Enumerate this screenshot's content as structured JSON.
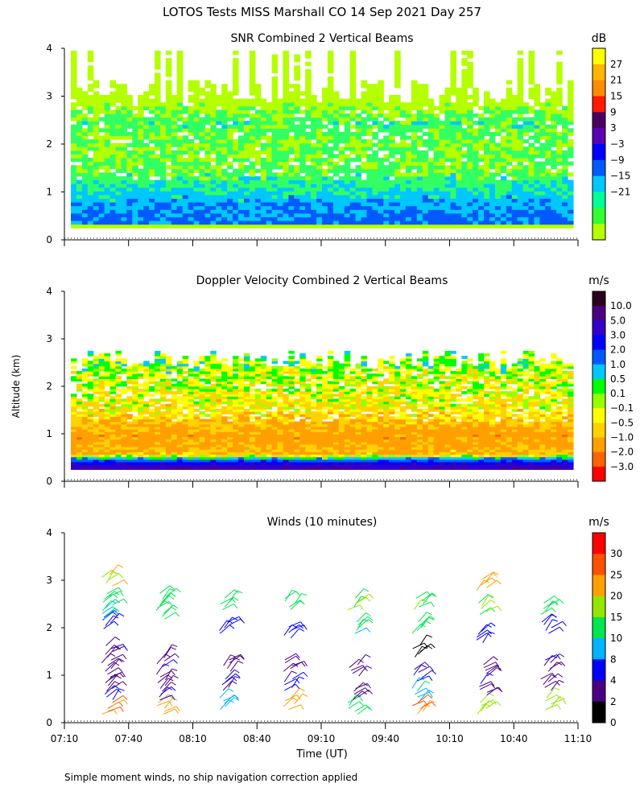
{
  "title": "LOTOS Tests MISS Marshall CO  14 Sep 2021 Day 257",
  "shared_ylabel": "Altitude (km)",
  "footnote": "Simple moment winds, no ship navigation correction applied",
  "chart_data": [
    {
      "id": "snr",
      "type": "heatmap",
      "title": "SNR Combined 2 Vertical Beams",
      "xlabel": "",
      "ylabel": "Altitude (km)",
      "ylim": [
        0,
        4
      ],
      "xlim": [
        "07:10",
        "11:10"
      ],
      "yticks": [
        "0",
        "1",
        "2",
        "3",
        "4"
      ],
      "colorbar": {
        "unit": "dB",
        "labels": [
          "27",
          "21",
          "15",
          "9",
          "3",
          "−3",
          "−9",
          "−15",
          "−21"
        ],
        "colors": [
          "#ffff00",
          "#ffb400",
          "#ff8c00",
          "#ff1a00",
          "#4b0060",
          "#5a00b4",
          "#0000ff",
          "#005aff",
          "#00c8ff",
          "#00ff96",
          "#32ff32",
          "#b4ff00"
        ]
      },
      "profile": [
        {
          "alt_km": 0.4,
          "level_db": -1
        },
        {
          "alt_km": 0.8,
          "level_db": -4
        },
        {
          "alt_km": 1.1,
          "level_db": -9
        },
        {
          "alt_km": 1.5,
          "level_db": -14
        },
        {
          "alt_km": 2.0,
          "level_db": -15
        },
        {
          "alt_km": 2.5,
          "level_db": -12
        },
        {
          "alt_km": 3.0,
          "level_db": -20
        }
      ]
    },
    {
      "id": "doppler",
      "type": "heatmap",
      "title": "Doppler Velocity Combined 2 Vertical Beams",
      "xlabel": "",
      "ylabel": "Altitude (km)",
      "ylim": [
        0,
        4
      ],
      "xlim": [
        "07:10",
        "11:10"
      ],
      "yticks": [
        "0",
        "1",
        "2",
        "3",
        "4"
      ],
      "colorbar": {
        "unit": "m/s",
        "labels": [
          "10.0",
          "5.0",
          "3.0",
          "2.0",
          "1.0",
          "0.5",
          "0.1",
          "−0.1",
          "−0.5",
          "−1.0",
          "−2.0",
          "−3.0"
        ],
        "colors": [
          "#2a001e",
          "#4b0082",
          "#3200c8",
          "#0000ff",
          "#005aff",
          "#00c8ff",
          "#00ff00",
          "#96ff00",
          "#ffff00",
          "#ffd200",
          "#ffa000",
          "#ff6400",
          "#ff0000"
        ]
      },
      "profile": [
        {
          "alt_km": 0.3,
          "level_ms": 5.0
        },
        {
          "alt_km": 0.6,
          "level_ms": -1.0
        },
        {
          "alt_km": 1.0,
          "level_ms": -1.5
        },
        {
          "alt_km": 1.5,
          "level_ms": -0.5
        },
        {
          "alt_km": 2.0,
          "level_ms": -0.3
        },
        {
          "alt_km": 2.5,
          "level_ms": 0.1
        }
      ]
    },
    {
      "id": "winds",
      "type": "scatter",
      "title": "Winds (10 minutes)",
      "xlabel": "Time (UT)",
      "ylabel": "Altitude (km)",
      "ylim": [
        0,
        4
      ],
      "xlim": [
        "07:10",
        "11:10"
      ],
      "xticks": [
        "07:10",
        "07:40",
        "08:10",
        "08:40",
        "09:10",
        "09:40",
        "10:10",
        "10:40",
        "11:10"
      ],
      "yticks": [
        "0",
        "1",
        "2",
        "3",
        "4"
      ],
      "colorbar": {
        "unit": "m/s",
        "labels": [
          "30",
          "25",
          "20",
          "15",
          "10",
          "8",
          "4",
          "2",
          "0"
        ],
        "colors": [
          "#ff0000",
          "#ff5000",
          "#ffa000",
          "#96e600",
          "#00e650",
          "#00b4ff",
          "#0000ff",
          "#4b0082",
          "#000000"
        ]
      },
      "profiles_time": [
        "07:30",
        "07:55",
        "08:25",
        "08:55",
        "09:25",
        "09:55",
        "10:25",
        "10:55"
      ],
      "profiles": [
        [
          {
            "alt": 0.3,
            "spd": 25
          },
          {
            "alt": 0.6,
            "spd": 4
          },
          {
            "alt": 0.9,
            "spd": 3
          },
          {
            "alt": 1.2,
            "spd": 3
          },
          {
            "alt": 1.5,
            "spd": 4
          },
          {
            "alt": 2.1,
            "spd": 6
          },
          {
            "alt": 2.3,
            "spd": 10
          },
          {
            "alt": 2.6,
            "spd": 14
          },
          {
            "alt": 3.0,
            "spd": 20
          }
        ],
        [
          {
            "alt": 0.3,
            "spd": 24
          },
          {
            "alt": 0.6,
            "spd": 4
          },
          {
            "alt": 0.9,
            "spd": 3
          },
          {
            "alt": 1.3,
            "spd": 4
          },
          {
            "alt": 2.3,
            "spd": 12
          },
          {
            "alt": 2.6,
            "spd": 14
          }
        ],
        [
          {
            "alt": 0.4,
            "spd": 10
          },
          {
            "alt": 0.8,
            "spd": 4
          },
          {
            "alt": 1.2,
            "spd": 3
          },
          {
            "alt": 2.0,
            "spd": 6
          },
          {
            "alt": 2.5,
            "spd": 14
          }
        ],
        [
          {
            "alt": 0.4,
            "spd": 22
          },
          {
            "alt": 0.8,
            "spd": 4
          },
          {
            "alt": 1.2,
            "spd": 3
          },
          {
            "alt": 1.9,
            "spd": 7
          },
          {
            "alt": 2.5,
            "spd": 13
          }
        ],
        [
          {
            "alt": 0.3,
            "spd": 12
          },
          {
            "alt": 0.6,
            "spd": 4
          },
          {
            "alt": 1.1,
            "spd": 3
          },
          {
            "alt": 2.0,
            "spd": 10
          },
          {
            "alt": 2.5,
            "spd": 15
          }
        ],
        [
          {
            "alt": 0.3,
            "spd": 25
          },
          {
            "alt": 0.6,
            "spd": 10
          },
          {
            "alt": 1.0,
            "spd": 4
          },
          {
            "alt": 1.5,
            "spd": 1
          },
          {
            "alt": 2.0,
            "spd": 11
          },
          {
            "alt": 2.5,
            "spd": 15
          }
        ],
        [
          {
            "alt": 0.3,
            "spd": 18
          },
          {
            "alt": 0.7,
            "spd": 4
          },
          {
            "alt": 1.1,
            "spd": 3
          },
          {
            "alt": 1.8,
            "spd": 6
          },
          {
            "alt": 2.4,
            "spd": 15
          },
          {
            "alt": 2.9,
            "spd": 21
          }
        ],
        [
          {
            "alt": 0.4,
            "spd": 16
          },
          {
            "alt": 0.8,
            "spd": 3
          },
          {
            "alt": 1.2,
            "spd": 4
          },
          {
            "alt": 2.0,
            "spd": 6
          },
          {
            "alt": 2.4,
            "spd": 11
          }
        ]
      ]
    }
  ]
}
